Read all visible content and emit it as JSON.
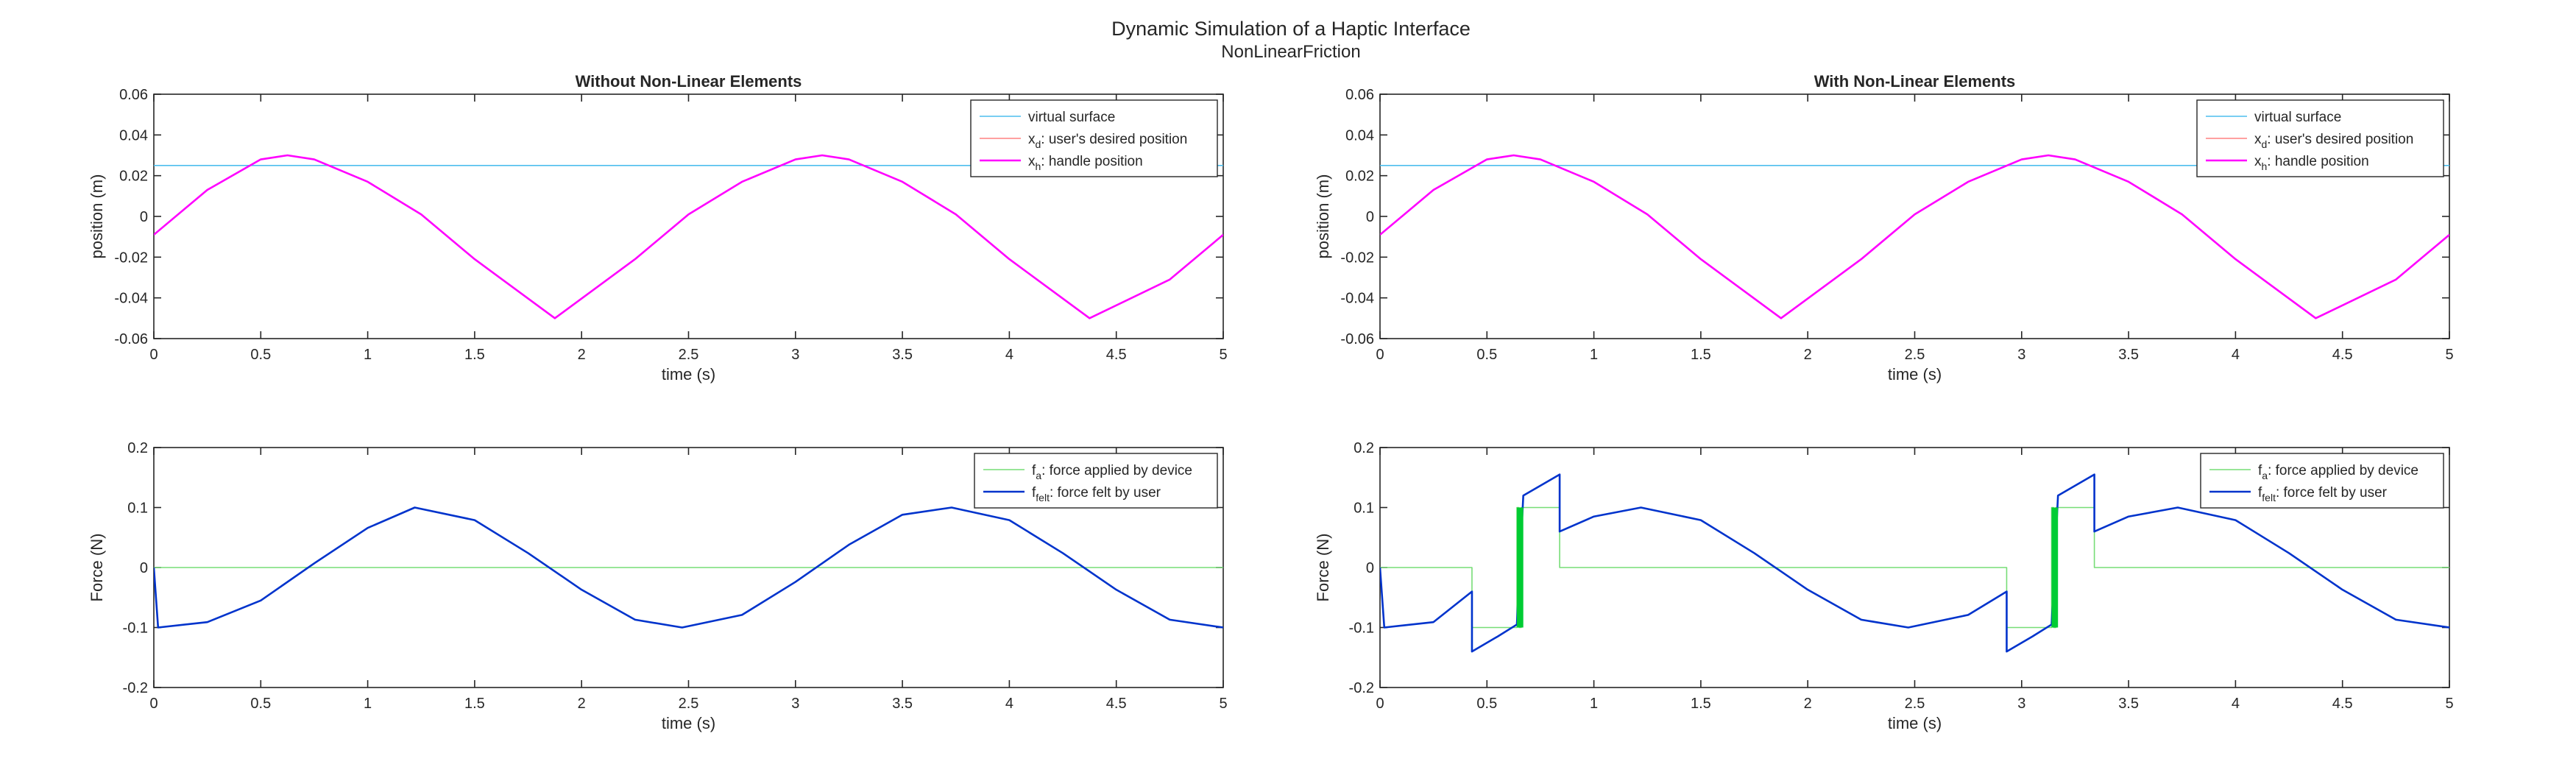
{
  "figure": {
    "title": "Dynamic Simulation of a Haptic Interface",
    "subtitle": "NonLinearFriction"
  },
  "chart_data": [
    {
      "type": "line",
      "panel": "top-left",
      "title": "Without Non-Linear Elements",
      "xlabel": "time (s)",
      "ylabel": "position (m)",
      "xlim": [
        0,
        5
      ],
      "ylim": [
        -0.06,
        0.06
      ],
      "xticks": [
        0,
        0.5,
        1,
        1.5,
        2,
        2.5,
        3,
        3.5,
        4,
        4.5,
        5
      ],
      "yticks": [
        -0.06,
        -0.04,
        -0.02,
        0,
        0.02,
        0.04,
        0.06
      ],
      "xtick_labels": [
        "0",
        "0.5",
        "1",
        "1.5",
        "2",
        "2.5",
        "3",
        "3.5",
        "4",
        "4.5",
        "5"
      ],
      "ytick_labels": [
        "-0.06",
        "-0.04",
        "-0.02",
        "0",
        "0.02",
        "0.04",
        "0.06"
      ],
      "grid": false,
      "legend_position": "top-right",
      "series": [
        {
          "name": "virtual surface",
          "legend": {
            "base": "virtual surface",
            "sub": "",
            "rest": ""
          },
          "color": "#4dbeee",
          "x": [
            0,
            5
          ],
          "y": [
            0.025,
            0.025
          ]
        },
        {
          "name": "x_d: user's desired position",
          "legend": {
            "base": "x",
            "sub": "d",
            "rest": ": user's desired position"
          },
          "color": "#ff8080",
          "x": [
            0,
            0.25,
            0.5,
            0.625,
            0.75,
            1,
            1.25,
            1.5,
            1.875,
            2.25,
            2.5,
            2.75,
            3,
            3.125,
            3.25,
            3.5,
            3.75,
            4,
            4.375,
            4.75,
            5
          ],
          "y": [
            -0.009,
            0.013,
            0.028,
            0.03,
            0.028,
            0.017,
            0.001,
            -0.021,
            -0.05,
            -0.021,
            0.001,
            0.017,
            0.028,
            0.03,
            0.028,
            0.017,
            0.001,
            -0.021,
            -0.05,
            -0.031,
            -0.009
          ]
        },
        {
          "name": "x_h: handle position",
          "legend": {
            "base": "x",
            "sub": "h",
            "rest": ": handle position"
          },
          "color": "#ff00ff",
          "x": [
            0,
            0.25,
            0.5,
            0.625,
            0.75,
            1,
            1.25,
            1.5,
            1.875,
            2.25,
            2.5,
            2.75,
            3,
            3.125,
            3.25,
            3.5,
            3.75,
            4,
            4.375,
            4.75,
            5
          ],
          "y": [
            -0.009,
            0.013,
            0.028,
            0.03,
            0.028,
            0.017,
            0.001,
            -0.021,
            -0.05,
            -0.021,
            0.001,
            0.017,
            0.028,
            0.03,
            0.028,
            0.017,
            0.001,
            -0.021,
            -0.05,
            -0.031,
            -0.009
          ]
        }
      ]
    },
    {
      "type": "line",
      "panel": "top-right",
      "title": "With Non-Linear Elements",
      "xlabel": "time (s)",
      "ylabel": "position (m)",
      "xlim": [
        0,
        5
      ],
      "ylim": [
        -0.06,
        0.06
      ],
      "xticks": [
        0,
        0.5,
        1,
        1.5,
        2,
        2.5,
        3,
        3.5,
        4,
        4.5,
        5
      ],
      "yticks": [
        -0.06,
        -0.04,
        -0.02,
        0,
        0.02,
        0.04,
        0.06
      ],
      "xtick_labels": [
        "0",
        "0.5",
        "1",
        "1.5",
        "2",
        "2.5",
        "3",
        "3.5",
        "4",
        "4.5",
        "5"
      ],
      "ytick_labels": [
        "-0.06",
        "-0.04",
        "-0.02",
        "0",
        "0.02",
        "0.04",
        "0.06"
      ],
      "grid": false,
      "legend_position": "top-right",
      "series": [
        {
          "name": "virtual surface",
          "legend": {
            "base": "virtual surface",
            "sub": "",
            "rest": ""
          },
          "color": "#4dbeee",
          "x": [
            0,
            5
          ],
          "y": [
            0.025,
            0.025
          ]
        },
        {
          "name": "x_d: user's desired position",
          "legend": {
            "base": "x",
            "sub": "d",
            "rest": ": user's desired position"
          },
          "color": "#ff8080",
          "x": [
            0,
            0.25,
            0.5,
            0.625,
            0.75,
            1,
            1.25,
            1.5,
            1.875,
            2.25,
            2.5,
            2.75,
            3,
            3.125,
            3.25,
            3.5,
            3.75,
            4,
            4.375,
            4.75,
            5
          ],
          "y": [
            -0.009,
            0.013,
            0.028,
            0.03,
            0.028,
            0.017,
            0.001,
            -0.021,
            -0.05,
            -0.021,
            0.001,
            0.017,
            0.028,
            0.03,
            0.028,
            0.017,
            0.001,
            -0.021,
            -0.05,
            -0.031,
            -0.009
          ]
        },
        {
          "name": "x_h: handle position",
          "legend": {
            "base": "x",
            "sub": "h",
            "rest": ": handle position"
          },
          "color": "#ff00ff",
          "x": [
            0,
            0.25,
            0.5,
            0.625,
            0.75,
            1,
            1.25,
            1.5,
            1.875,
            2.25,
            2.5,
            2.75,
            3,
            3.125,
            3.25,
            3.5,
            3.75,
            4,
            4.375,
            4.75,
            5
          ],
          "y": [
            -0.009,
            0.013,
            0.028,
            0.03,
            0.028,
            0.017,
            0.001,
            -0.021,
            -0.05,
            -0.021,
            0.001,
            0.017,
            0.028,
            0.03,
            0.028,
            0.017,
            0.001,
            -0.021,
            -0.05,
            -0.031,
            -0.009
          ]
        }
      ]
    },
    {
      "type": "line",
      "panel": "bottom-left",
      "title": "",
      "xlabel": "time (s)",
      "ylabel": "Force (N)",
      "xlim": [
        0,
        5
      ],
      "ylim": [
        -0.2,
        0.2
      ],
      "xticks": [
        0,
        0.5,
        1,
        1.5,
        2,
        2.5,
        3,
        3.5,
        4,
        4.5,
        5
      ],
      "yticks": [
        -0.2,
        -0.1,
        0,
        0.1,
        0.2
      ],
      "xtick_labels": [
        "0",
        "0.5",
        "1",
        "1.5",
        "2",
        "2.5",
        "3",
        "3.5",
        "4",
        "4.5",
        "5"
      ],
      "ytick_labels": [
        "-0.2",
        "-0.1",
        "0",
        "0.1",
        "0.2"
      ],
      "grid": false,
      "legend_position": "top-right",
      "series": [
        {
          "name": "f_a: force applied by device",
          "legend": {
            "base": "f",
            "sub": "a",
            "rest": ": force applied by device"
          },
          "color": "#77dd77",
          "x": [
            0,
            5
          ],
          "y": [
            0,
            0
          ]
        },
        {
          "name": "f_felt: force felt by user",
          "legend": {
            "base": "f",
            "sub": "felt",
            "rest": ": force felt by user"
          },
          "color": "#0033cc",
          "x": [
            0,
            0.02,
            0.25,
            0.5,
            0.75,
            1,
            1.22,
            1.5,
            1.75,
            2,
            2.25,
            2.47,
            2.75,
            3,
            3.25,
            3.5,
            3.73,
            4,
            4.25,
            4.5,
            4.75,
            5
          ],
          "y": [
            0,
            -0.1,
            -0.091,
            -0.055,
            0.007,
            0.066,
            0.1,
            0.079,
            0.024,
            -0.037,
            -0.087,
            -0.1,
            -0.079,
            -0.024,
            0.038,
            0.088,
            0.1,
            0.079,
            0.024,
            -0.037,
            -0.087,
            -0.1
          ]
        }
      ]
    },
    {
      "type": "line",
      "panel": "bottom-right",
      "title": "",
      "xlabel": "time (s)",
      "ylabel": "Force (N)",
      "xlim": [
        0,
        5
      ],
      "ylim": [
        -0.2,
        0.2
      ],
      "xticks": [
        0,
        0.5,
        1,
        1.5,
        2,
        2.5,
        3,
        3.5,
        4,
        4.5,
        5
      ],
      "yticks": [
        -0.2,
        -0.1,
        0,
        0.1,
        0.2
      ],
      "xtick_labels": [
        "0",
        "0.5",
        "1",
        "1.5",
        "2",
        "2.5",
        "3",
        "3.5",
        "4",
        "4.5",
        "5"
      ],
      "ytick_labels": [
        "-0.2",
        "-0.1",
        "0",
        "0.1",
        "0.2"
      ],
      "grid": false,
      "legend_position": "top-right",
      "series": [
        {
          "name": "f_a: force applied by device",
          "legend": {
            "base": "f",
            "sub": "a",
            "rest": ": force applied by device"
          },
          "color": "#77dd77",
          "x": [
            0,
            0.43,
            0.43,
            0.64,
            0.64,
            0.65,
            0.65,
            0.66,
            0.66,
            0.67,
            0.67,
            0.84,
            0.84,
            2.93,
            2.93,
            3.14,
            3.14,
            3.15,
            3.15,
            3.16,
            3.16,
            3.17,
            3.17,
            3.34,
            3.34,
            5
          ],
          "y": [
            0,
            0,
            -0.1,
            -0.1,
            0.1,
            0.1,
            -0.1,
            -0.1,
            0.1,
            0.1,
            0.1,
            0.1,
            0,
            0,
            -0.1,
            -0.1,
            0.1,
            0.1,
            -0.1,
            -0.1,
            0.1,
            0.1,
            0.1,
            0.1,
            0,
            0
          ]
        },
        {
          "name": "f_felt: force felt by user",
          "legend": {
            "base": "f",
            "sub": "felt",
            "rest": ": force felt by user"
          },
          "color": "#0033cc",
          "x": [
            0,
            0.02,
            0.25,
            0.43,
            0.43,
            0.55,
            0.64,
            0.67,
            0.67,
            0.84,
            0.84,
            1,
            1.22,
            1.5,
            1.75,
            2,
            2.25,
            2.47,
            2.75,
            2.93,
            2.93,
            3.05,
            3.14,
            3.17,
            3.17,
            3.34,
            3.34,
            3.5,
            3.73,
            4,
            4.25,
            4.5,
            4.75,
            5
          ],
          "y": [
            0,
            -0.1,
            -0.091,
            -0.04,
            -0.14,
            -0.115,
            -0.095,
            0.12,
            0.12,
            0.155,
            0.06,
            0.085,
            0.1,
            0.079,
            0.024,
            -0.037,
            -0.087,
            -0.1,
            -0.079,
            -0.04,
            -0.14,
            -0.115,
            -0.095,
            0.12,
            0.12,
            0.155,
            0.06,
            0.085,
            0.1,
            0.079,
            0.024,
            -0.037,
            -0.087,
            -0.1
          ]
        },
        {
          "name": "green band 1",
          "legend": null,
          "color": "#00cc33",
          "band": true,
          "x": [
            0.64,
            0.67
          ],
          "y": [
            -0.1,
            0.1
          ]
        },
        {
          "name": "green band 2",
          "legend": null,
          "color": "#00cc33",
          "band": true,
          "x": [
            3.14,
            3.17
          ],
          "y": [
            -0.1,
            0.1
          ]
        }
      ]
    }
  ]
}
